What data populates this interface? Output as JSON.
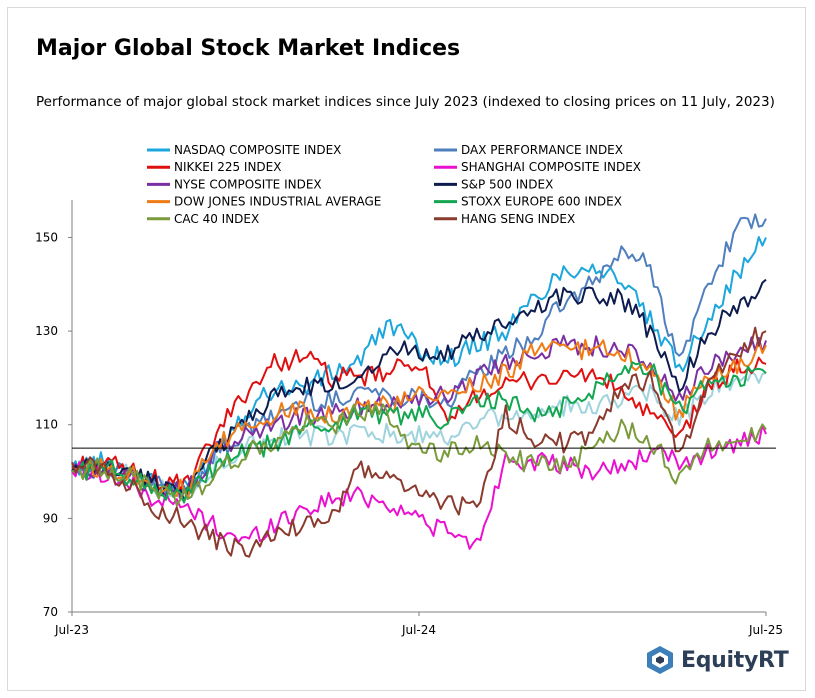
{
  "header": {
    "title": "Major Global Stock Market Indices",
    "subtitle": "Performance of major global stock market indices since July 2023 (indexed to closing prices on 11 July, 2023)"
  },
  "brand": {
    "name": "EquityRT",
    "logo_icon": "equityrt-logo-icon"
  },
  "chart_data": {
    "type": "line",
    "title": "Major Global Stock Market Indices",
    "subtitle": "Performance of major global stock market indices since July 2023 (indexed to closing prices on 11 July, 2023)",
    "xlabel": "",
    "ylabel": "",
    "x_ticks": [
      "Jul-23",
      "Jul-24",
      "Jul-25"
    ],
    "y_ticks": [
      70,
      90,
      110,
      130,
      150
    ],
    "ylim": [
      70,
      158
    ],
    "grid": false,
    "legend_position": "top",
    "reference_line": 105,
    "x": [
      "2023-07",
      "2023-08",
      "2023-09",
      "2023-10",
      "2023-11",
      "2023-12",
      "2024-01",
      "2024-02",
      "2024-03",
      "2024-04",
      "2024-05",
      "2024-06",
      "2024-07",
      "2024-08",
      "2024-09",
      "2024-10",
      "2024-11",
      "2024-12",
      "2025-01",
      "2025-02",
      "2025-03",
      "2025-04",
      "2025-05",
      "2025-06",
      "2025-07"
    ],
    "series": [
      {
        "name": "NASDAQ COMPOSITE INDEX",
        "color": "#1ba6dc",
        "values": [
          101,
          102,
          100,
          97,
          96,
          105,
          113,
          118,
          118,
          121,
          124,
          132,
          126,
          124,
          127,
          130,
          137,
          143,
          144,
          141,
          132,
          122,
          133,
          142,
          150
        ]
      },
      {
        "name": "DAX PERFORMANCE INDEX",
        "color": "#4f7fbd",
        "values": [
          100,
          101,
          99,
          97,
          96,
          104,
          108,
          112,
          115,
          115,
          118,
          116,
          116,
          115,
          121,
          125,
          129,
          136,
          140,
          147,
          144,
          123,
          140,
          152,
          154
        ]
      },
      {
        "name": "NIKKEI 225 INDEX",
        "color": "#e00f0f",
        "values": [
          101,
          102,
          100,
          98,
          97,
          108,
          117,
          123,
          125,
          120,
          120,
          121,
          124,
          109,
          117,
          118,
          120,
          120,
          121,
          117,
          112,
          107,
          118,
          122,
          123
        ]
      },
      {
        "name": "SHANGHAI COMPOSITE INDEX",
        "color": "#ea10d0",
        "values": [
          100,
          100,
          97,
          94,
          92,
          88,
          85,
          89,
          92,
          94,
          95,
          93,
          90,
          87,
          84,
          103,
          102,
          101,
          100,
          101,
          104,
          102,
          104,
          106,
          108
        ]
      },
      {
        "name": "NYSE COMPOSITE INDEX",
        "color": "#7b2fa3",
        "values": [
          100,
          101,
          99,
          97,
          96,
          104,
          108,
          110,
          112,
          112,
          114,
          115,
          116,
          116,
          121,
          123,
          126,
          127,
          127,
          126,
          123,
          115,
          122,
          126,
          128
        ]
      },
      {
        "name": "S&P 500 INDEX",
        "color": "#0d1b4e",
        "values": [
          100,
          101,
          100,
          97,
          96,
          105,
          111,
          116,
          118,
          118,
          121,
          126,
          126,
          125,
          129,
          131,
          135,
          138,
          138,
          137,
          130,
          118,
          130,
          135,
          141
        ]
      },
      {
        "name": "DOW JONES INDUSTRIAL AVERAGE",
        "color": "#f07b14",
        "values": [
          100,
          101,
          100,
          97,
          96,
          105,
          110,
          112,
          114,
          112,
          114,
          114,
          116,
          116,
          119,
          121,
          126,
          126,
          126,
          126,
          121,
          112,
          121,
          122,
          127
        ]
      },
      {
        "name": "STOXX EUROPE 600 INDEX",
        "color": "#12a650",
        "values": [
          100,
          101,
          99,
          96,
          95,
          101,
          104,
          106,
          109,
          110,
          113,
          112,
          112,
          111,
          115,
          115,
          112,
          114,
          117,
          123,
          122,
          113,
          119,
          120,
          121
        ]
      },
      {
        "name": "CAC 40 INDEX",
        "color": "#7a9a3c",
        "values": [
          100,
          101,
          99,
          96,
          94,
          100,
          104,
          106,
          110,
          110,
          113,
          112,
          104,
          104,
          106,
          104,
          101,
          102,
          104,
          110,
          107,
          98,
          106,
          106,
          109
        ]
      },
      {
        "name": "HANG SENG INDEX",
        "color": "#8b3a2e",
        "values": [
          102,
          101,
          97,
          92,
          89,
          85,
          83,
          86,
          89,
          90,
          101,
          98,
          96,
          93,
          92,
          112,
          107,
          106,
          107,
          118,
          120,
          104,
          118,
          126,
          130
        ]
      }
    ],
    "light_series": {
      "name": "",
      "color": "#9fd3de",
      "values": [
        100,
        101,
        99,
        96,
        95,
        102,
        105,
        107,
        108,
        107,
        109,
        108,
        108,
        107,
        111,
        112,
        113,
        114,
        114,
        116,
        117,
        111,
        117,
        119,
        121
      ]
    }
  }
}
